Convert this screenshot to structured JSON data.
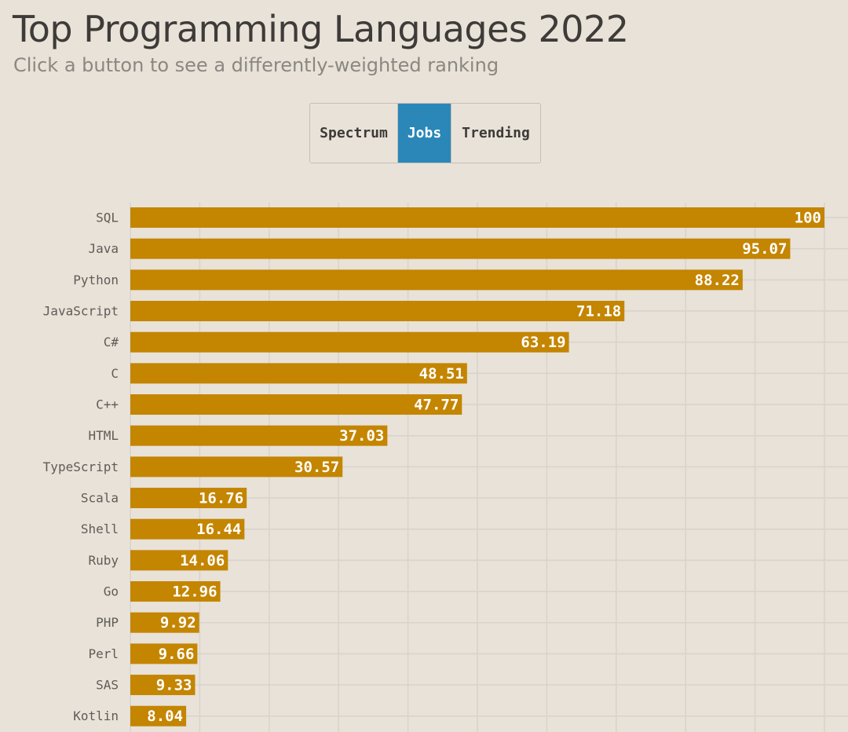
{
  "header": {
    "title": "Top Programming Languages 2022",
    "subtitle": "Click a button to see a differently-weighted ranking"
  },
  "buttons": {
    "active": "Jobs",
    "items": [
      "Spectrum",
      "Jobs",
      "Trending"
    ]
  },
  "colors": {
    "background": "#e8e2d9",
    "bar": "#c48500",
    "active_button": "#2a87b8",
    "gridline": "#d8d3cb"
  },
  "chart_data": {
    "type": "bar",
    "orientation": "horizontal",
    "title": "Top Programming Languages 2022",
    "subtitle": "Click a button to see a differently-weighted ranking",
    "xlabel": "",
    "ylabel": "",
    "xlim": [
      0,
      100
    ],
    "grid": true,
    "categories": [
      "SQL",
      "Java",
      "Python",
      "JavaScript",
      "C#",
      "C",
      "C++",
      "HTML",
      "TypeScript",
      "Scala",
      "Shell",
      "Ruby",
      "Go",
      "PHP",
      "Perl",
      "SAS",
      "Kotlin"
    ],
    "values": [
      100,
      95.07,
      88.22,
      71.18,
      63.19,
      48.51,
      47.77,
      37.03,
      30.57,
      16.76,
      16.44,
      14.06,
      12.96,
      9.92,
      9.66,
      9.33,
      8.04
    ],
    "value_labels": [
      "100",
      "95.07",
      "88.22",
      "71.18",
      "63.19",
      "48.51",
      "47.77",
      "37.03",
      "30.57",
      "16.76",
      "16.44",
      "14.06",
      "12.96",
      "9.92",
      "9.66",
      "9.33",
      "8.04"
    ]
  }
}
